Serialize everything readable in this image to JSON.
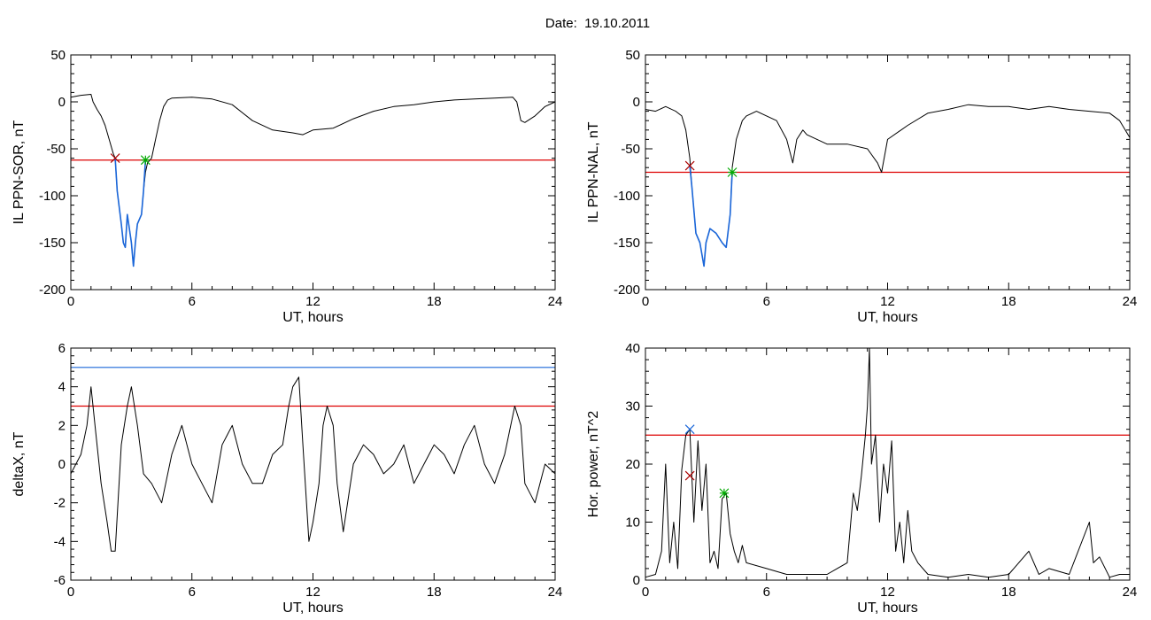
{
  "page": {
    "title": "Date:  19.10.2011"
  },
  "chart_data": [
    {
      "type": "line",
      "id": "sor",
      "xlabel": "UT, hours",
      "ylabel": "IL PPN-SOR, nT",
      "xlim": [
        0,
        24
      ],
      "ylim": [
        -200,
        50
      ],
      "xticks": [
        0,
        6,
        12,
        18,
        24
      ],
      "yticks": [
        -200,
        -150,
        -100,
        -50,
        0,
        50
      ],
      "series": [
        {
          "color": "#000000",
          "x": [
            0,
            0.5,
            1.0,
            1.1,
            1.3,
            1.5,
            1.7,
            1.9,
            2.1,
            2.2,
            2.3,
            2.5,
            2.6,
            2.7,
            2.8,
            3.0,
            3.1,
            3.2,
            3.3,
            3.5,
            3.6,
            3.7,
            3.8,
            4.0,
            4.2,
            4.4,
            4.6,
            4.8,
            5.0,
            6,
            7,
            8,
            9,
            10,
            11,
            11.5,
            12,
            13,
            14,
            15,
            16,
            17,
            18,
            19,
            20,
            21,
            21.9,
            22.1,
            22.3,
            22.5,
            23,
            23.5,
            24
          ],
          "y": [
            5,
            7,
            8,
            0,
            -8,
            -15,
            -25,
            -40,
            -55,
            -60,
            -95,
            -130,
            -150,
            -155,
            -120,
            -150,
            -175,
            -150,
            -130,
            -120,
            -95,
            -75,
            -65,
            -60,
            -40,
            -20,
            -5,
            2,
            4,
            5,
            3,
            -3,
            -20,
            -30,
            -33,
            -35,
            -30,
            -28,
            -18,
            -10,
            -5,
            -3,
            0,
            2,
            3,
            4,
            5,
            0,
            -20,
            -22,
            -15,
            -5,
            0
          ]
        },
        {
          "color": "#1a66d9",
          "x": [
            2.2,
            2.3,
            2.5,
            2.6,
            2.7,
            2.8,
            3.0,
            3.1,
            3.2,
            3.3,
            3.5,
            3.6,
            3.7
          ],
          "y": [
            -60,
            -95,
            -130,
            -150,
            -155,
            -120,
            -150,
            -175,
            -150,
            -130,
            -120,
            -95,
            -62
          ]
        }
      ],
      "hlines": [
        {
          "y": -62,
          "color": "#dd0000"
        }
      ],
      "markers": [
        {
          "x": 2.2,
          "y": -60,
          "color": "#aa0000",
          "symbol": "x"
        },
        {
          "x": 3.7,
          "y": -62,
          "color": "#00aa00",
          "symbol": "*"
        }
      ]
    },
    {
      "type": "line",
      "id": "nal",
      "xlabel": "UT, hours",
      "ylabel": "IL PPN-NAL, nT",
      "xlim": [
        0,
        24
      ],
      "ylim": [
        -200,
        50
      ],
      "xticks": [
        0,
        6,
        12,
        18,
        24
      ],
      "yticks": [
        -200,
        -150,
        -100,
        -50,
        0,
        50
      ],
      "series": [
        {
          "color": "#000000",
          "x": [
            0,
            0.5,
            1.0,
            1.5,
            1.8,
            2.0,
            2.2,
            2.3,
            2.5,
            2.7,
            2.9,
            3.0,
            3.2,
            3.5,
            3.8,
            4.0,
            4.2,
            4.3,
            4.5,
            4.8,
            5.0,
            5.5,
            6.0,
            6.5,
            7.0,
            7.3,
            7.5,
            7.8,
            8.0,
            9.0,
            10.0,
            11.0,
            11.5,
            11.7,
            12.0,
            13.0,
            14.0,
            15.0,
            16.0,
            17.0,
            18.0,
            19.0,
            20.0,
            21.0,
            22.0,
            23.0,
            23.5,
            24.0
          ],
          "y": [
            -8,
            -10,
            -5,
            -10,
            -15,
            -30,
            -60,
            -90,
            -140,
            -150,
            -175,
            -150,
            -135,
            -140,
            -150,
            -155,
            -120,
            -70,
            -40,
            -20,
            -15,
            -10,
            -15,
            -20,
            -40,
            -65,
            -40,
            -30,
            -35,
            -45,
            -45,
            -50,
            -65,
            -75,
            -40,
            -25,
            -12,
            -8,
            -3,
            -5,
            -5,
            -8,
            -5,
            -8,
            -10,
            -12,
            -20,
            -38
          ]
        },
        {
          "color": "#1a66d9",
          "x": [
            2.2,
            2.3,
            2.5,
            2.7,
            2.9,
            3.0,
            3.2,
            3.5,
            3.8,
            4.0,
            4.2,
            4.3
          ],
          "y": [
            -68,
            -90,
            -140,
            -150,
            -175,
            -150,
            -135,
            -140,
            -150,
            -155,
            -120,
            -75
          ]
        }
      ],
      "hlines": [
        {
          "y": -75,
          "color": "#dd0000"
        }
      ],
      "markers": [
        {
          "x": 2.2,
          "y": -68,
          "color": "#aa0000",
          "symbol": "x"
        },
        {
          "x": 4.3,
          "y": -75,
          "color": "#00aa00",
          "symbol": "*"
        }
      ]
    },
    {
      "type": "line",
      "id": "deltax",
      "xlabel": "UT, hours",
      "ylabel": "deltaX, nT",
      "xlim": [
        0,
        24
      ],
      "ylim": [
        -6,
        6
      ],
      "xticks": [
        0,
        6,
        12,
        18,
        24
      ],
      "yticks": [
        -6,
        -4,
        -2,
        0,
        2,
        4,
        6
      ],
      "series": [
        {
          "color": "#000000",
          "x": [
            0,
            0.5,
            0.8,
            1.0,
            1.2,
            1.5,
            1.8,
            2.0,
            2.2,
            2.5,
            2.8,
            3.0,
            3.3,
            3.6,
            4.0,
            4.5,
            5.0,
            5.5,
            6.0,
            6.5,
            7.0,
            7.5,
            8.0,
            8.5,
            9.0,
            9.5,
            10.0,
            10.5,
            10.8,
            11.0,
            11.3,
            11.5,
            11.8,
            12.0,
            12.3,
            12.5,
            12.7,
            13.0,
            13.2,
            13.5,
            14.0,
            14.5,
            15.0,
            15.5,
            16.0,
            16.5,
            17.0,
            17.5,
            18.0,
            18.5,
            19.0,
            19.5,
            20.0,
            20.5,
            21.0,
            21.5,
            22.0,
            22.3,
            22.5,
            23.0,
            23.5,
            24.0
          ],
          "y": [
            -0.5,
            0.5,
            2,
            4,
            2,
            -1,
            -3,
            -4.5,
            -4.5,
            1,
            3,
            4,
            2,
            -0.5,
            -1,
            -2,
            0.5,
            2,
            0,
            -1,
            -2,
            1,
            2,
            0,
            -1,
            -1,
            0.5,
            1,
            3,
            4,
            4.5,
            1,
            -4,
            -3,
            -1,
            2,
            3,
            2,
            -1,
            -3.5,
            0,
            1,
            0.5,
            -0.5,
            0,
            1,
            -1,
            0,
            1,
            0.5,
            -0.5,
            1,
            2,
            0,
            -1,
            0.5,
            3,
            2,
            -1,
            -2,
            0,
            -0.5
          ]
        }
      ],
      "hlines": [
        {
          "y": 5,
          "color": "#1a66d9"
        },
        {
          "y": 3,
          "color": "#dd0000"
        }
      ],
      "markers": []
    },
    {
      "type": "line",
      "id": "power",
      "xlabel": "UT, hours",
      "ylabel": "Hor. power, nT^2",
      "xlim": [
        0,
        24
      ],
      "ylim": [
        0,
        40
      ],
      "xticks": [
        0,
        6,
        12,
        18,
        24
      ],
      "yticks": [
        0,
        10,
        20,
        30,
        40
      ],
      "series": [
        {
          "color": "#000000",
          "x": [
            0,
            0.5,
            0.8,
            1.0,
            1.2,
            1.4,
            1.6,
            1.8,
            2.0,
            2.2,
            2.4,
            2.6,
            2.8,
            3.0,
            3.2,
            3.4,
            3.6,
            3.8,
            4.0,
            4.2,
            4.4,
            4.6,
            4.8,
            5.0,
            6.0,
            7.0,
            8.0,
            9.0,
            9.5,
            10.0,
            10.3,
            10.5,
            10.7,
            10.9,
            11.0,
            11.1,
            11.2,
            11.4,
            11.6,
            11.8,
            12.0,
            12.2,
            12.4,
            12.6,
            12.8,
            13.0,
            13.2,
            13.5,
            14.0,
            15.0,
            16.0,
            17.0,
            18.0,
            19.0,
            19.5,
            20.0,
            21.0,
            22.0,
            22.2,
            22.5,
            23.0,
            23.5,
            24.0
          ],
          "y": [
            0.5,
            1,
            5,
            20,
            3,
            10,
            2,
            19,
            25,
            26,
            10,
            24,
            12,
            20,
            3,
            5,
            2,
            14,
            15,
            8,
            5,
            3,
            6,
            3,
            2,
            1,
            1,
            1,
            2,
            3,
            15,
            12,
            18,
            25,
            30,
            40,
            20,
            25,
            10,
            20,
            15,
            24,
            5,
            10,
            3,
            12,
            5,
            3,
            1,
            0.5,
            1,
            0.5,
            1,
            5,
            1,
            2,
            1,
            10,
            3,
            4,
            0.5,
            1,
            1
          ]
        }
      ],
      "hlines": [
        {
          "y": 25,
          "color": "#dd0000"
        }
      ],
      "markers": [
        {
          "x": 2.2,
          "y": 26,
          "color": "#1a66d9",
          "symbol": "x"
        },
        {
          "x": 2.2,
          "y": 18,
          "color": "#aa0000",
          "symbol": "x"
        },
        {
          "x": 3.9,
          "y": 15,
          "color": "#00aa00",
          "symbol": "*"
        }
      ]
    }
  ]
}
